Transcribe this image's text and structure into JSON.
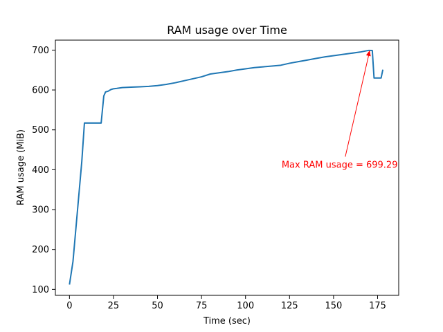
{
  "chart_data": {
    "type": "line",
    "title": "RAM usage over Time",
    "xlabel": "Time (sec)",
    "ylabel": "RAM usage (MiB)",
    "xlim": [
      -8,
      187
    ],
    "ylim": [
      85,
      725
    ],
    "x_ticks": [
      0,
      25,
      50,
      75,
      100,
      125,
      150,
      175
    ],
    "y_ticks": [
      100,
      200,
      300,
      400,
      500,
      600,
      700
    ],
    "grid": false,
    "legend": "none",
    "line_color": "#1f77b4",
    "series": [
      {
        "x": [
          0,
          2,
          4,
          6,
          7,
          8.5,
          10,
          12,
          14,
          16,
          18,
          19.5,
          20.5,
          22,
          23.5,
          25,
          27,
          30,
          35,
          40,
          45,
          50,
          55,
          60,
          65,
          70,
          75,
          80,
          85,
          90,
          95,
          100,
          105,
          110,
          115,
          120,
          125,
          130,
          135,
          140,
          145,
          150,
          155,
          160,
          165,
          170,
          172,
          173,
          175,
          177,
          178
        ],
        "values": [
          112,
          170,
          270,
          370,
          420,
          517,
          517,
          517,
          517,
          517,
          517,
          585,
          595,
          597,
          601,
          603,
          604,
          606,
          607,
          608,
          609,
          611,
          614,
          618,
          623,
          628,
          633,
          640,
          643,
          646,
          650,
          653,
          656,
          658,
          660,
          662,
          667,
          671,
          675,
          679,
          683,
          686,
          689,
          692,
          695,
          699.29,
          699,
          630,
          630,
          630,
          651
        ]
      }
    ],
    "annotation": {
      "text": "Max RAM usage = 699.29",
      "color": "#ff0000",
      "xy": [
        170.5,
        699.29
      ],
      "xytext": [
        120.5,
        405
      ]
    }
  }
}
